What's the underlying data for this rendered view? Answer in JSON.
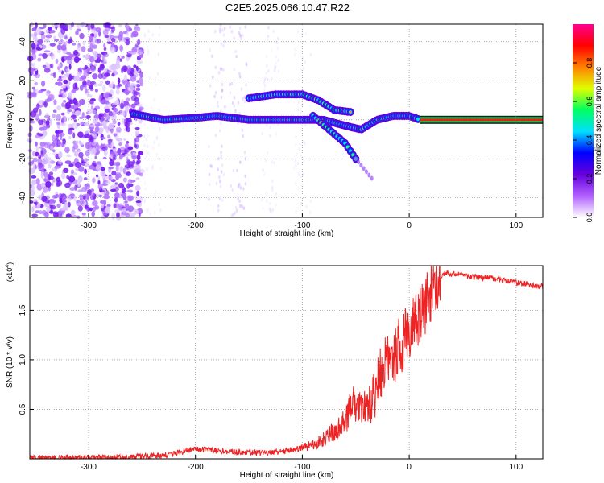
{
  "title": "C2E5.2025.066.10.47.R22",
  "chart_data": [
    {
      "type": "heatmap",
      "xlabel": "Height of straight line (km)",
      "ylabel": "Frequency (Hz)",
      "xlim": [
        -355,
        125
      ],
      "ylim": [
        -50,
        49
      ],
      "xticks": [
        -300,
        -200,
        -100,
        0,
        100
      ],
      "yticks": [
        -40,
        -20,
        0,
        20,
        40
      ],
      "colorbar": {
        "label": "Normalized spectral amplitude",
        "range": [
          0,
          1
        ],
        "ticks": [
          "0.0",
          "0.2",
          "0.4",
          "0.6",
          "0.8"
        ],
        "colors": [
          "#ffffff",
          "#b060ff",
          "#6600dd",
          "#0000ff",
          "#00e0ff",
          "#00ff60",
          "#e0ff00",
          "#ff8000",
          "#ff0000",
          "#ff0090"
        ]
      },
      "features": {
        "noise_region_x": [
          -355,
          -250
        ],
        "main_trace": [
          [
            -258,
            3
          ],
          [
            -230,
            0
          ],
          [
            -200,
            1
          ],
          [
            -180,
            2
          ],
          [
            -150,
            0
          ],
          [
            -120,
            0
          ],
          [
            -100,
            0
          ],
          [
            -80,
            0
          ],
          [
            -60,
            -3
          ],
          [
            -45,
            -5
          ],
          [
            -30,
            0
          ],
          [
            -15,
            2
          ],
          [
            0,
            2
          ],
          [
            10,
            0
          ],
          [
            125,
            0
          ]
        ],
        "upper_branch": [
          [
            -150,
            11
          ],
          [
            -125,
            13
          ],
          [
            -100,
            13
          ],
          [
            -85,
            10
          ],
          [
            -70,
            5
          ],
          [
            -55,
            4
          ]
        ],
        "lower_branch": [
          [
            -90,
            2
          ],
          [
            -75,
            -5
          ],
          [
            -60,
            -12
          ],
          [
            -50,
            -20
          ],
          [
            -35,
            -30
          ]
        ]
      }
    },
    {
      "type": "line",
      "xlabel": "Height of straight line (km)",
      "ylabel": "SNR (10 * v/v)",
      "y_multiplier": "(x10",
      "y_multiplier_exp": "4",
      "xlim": [
        -355,
        125
      ],
      "ylim": [
        0,
        1.95
      ],
      "xticks": [
        -300,
        -200,
        -100,
        0,
        100
      ],
      "yticks": [
        "0.5",
        "1.0",
        "1.5"
      ],
      "color": "#ee2222",
      "series": [
        {
          "x": [
            -355,
            -300,
            -260,
            -240,
            -220,
            -210,
            -200,
            -190,
            -180,
            -160,
            -140,
            -120,
            -100,
            -90,
            -80,
            -70,
            -60,
            -55,
            -50,
            -45,
            -40,
            -35,
            -30,
            -25,
            -20,
            -15,
            -10,
            -5,
            0,
            5,
            10,
            15,
            20,
            25,
            30,
            35,
            40,
            60,
            80,
            100,
            125
          ],
          "values": [
            0.01,
            0.01,
            0.02,
            0.03,
            0.05,
            0.08,
            0.1,
            0.09,
            0.08,
            0.07,
            0.06,
            0.07,
            0.11,
            0.14,
            0.2,
            0.28,
            0.38,
            0.5,
            0.6,
            0.55,
            0.5,
            0.58,
            0.72,
            0.9,
            1.0,
            1.05,
            1.12,
            1.2,
            1.28,
            1.35,
            1.45,
            1.55,
            1.65,
            1.75,
            1.85,
            1.88,
            1.87,
            1.84,
            1.82,
            1.78,
            1.74
          ]
        }
      ]
    }
  ]
}
